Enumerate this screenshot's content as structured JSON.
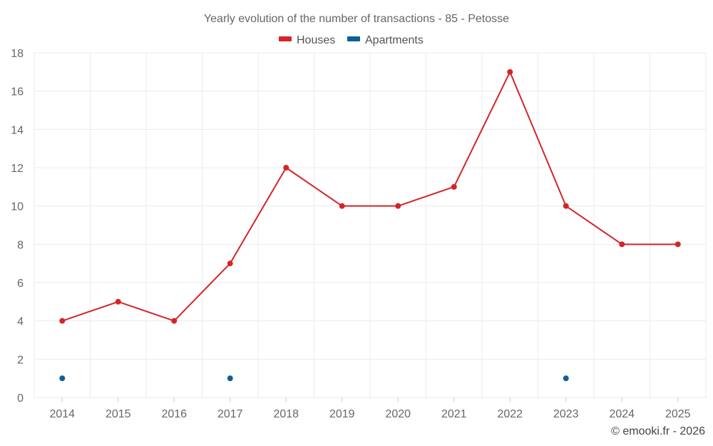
{
  "chart_data": {
    "type": "line",
    "title": "Yearly evolution of the number of transactions - 85 - Petosse",
    "categories": [
      "2014",
      "2015",
      "2016",
      "2017",
      "2018",
      "2019",
      "2020",
      "2021",
      "2022",
      "2023",
      "2024",
      "2025"
    ],
    "series": [
      {
        "name": "Houses",
        "color": "#d32528",
        "line": true,
        "values": [
          4,
          5,
          4,
          7,
          12,
          10,
          10,
          11,
          17,
          10,
          8,
          8
        ]
      },
      {
        "name": "Apartments",
        "color": "#0b6193",
        "line": false,
        "values": [
          1,
          null,
          null,
          1,
          null,
          null,
          null,
          null,
          null,
          1,
          null,
          null
        ]
      }
    ],
    "ylim": [
      0,
      18
    ],
    "yticks": [
      0,
      2,
      4,
      6,
      8,
      10,
      12,
      14,
      16,
      18
    ],
    "xlabel": "",
    "ylabel": "",
    "grid": true,
    "legend": "top-center"
  },
  "credit": "© emooki.fr - 2026"
}
